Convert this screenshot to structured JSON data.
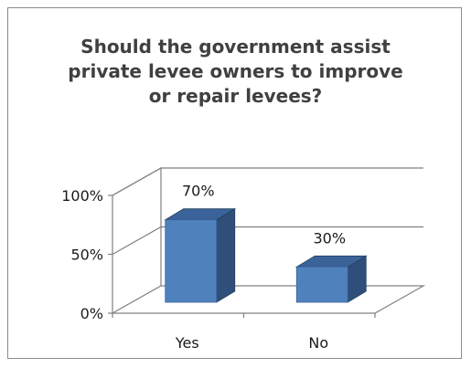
{
  "chart_data": {
    "type": "bar",
    "title_lines": [
      "Should the government assist",
      "private levee owners to improve",
      "or repair levees?"
    ],
    "categories": [
      "Yes",
      "No"
    ],
    "values": [
      70,
      30
    ],
    "data_labels": [
      "70%",
      "30%"
    ],
    "y_ticks": [
      "0%",
      "50%",
      "100%"
    ],
    "y_tick_values": [
      0,
      50,
      100
    ],
    "ylim": [
      0,
      100
    ],
    "grid": true,
    "colors": {
      "bar_front": "#4f81bd",
      "bar_side": "#2f4f7a",
      "bar_top": "#3a6399",
      "gridline": "#808080",
      "text": "#1a1a1a",
      "title": "#404040"
    }
  }
}
